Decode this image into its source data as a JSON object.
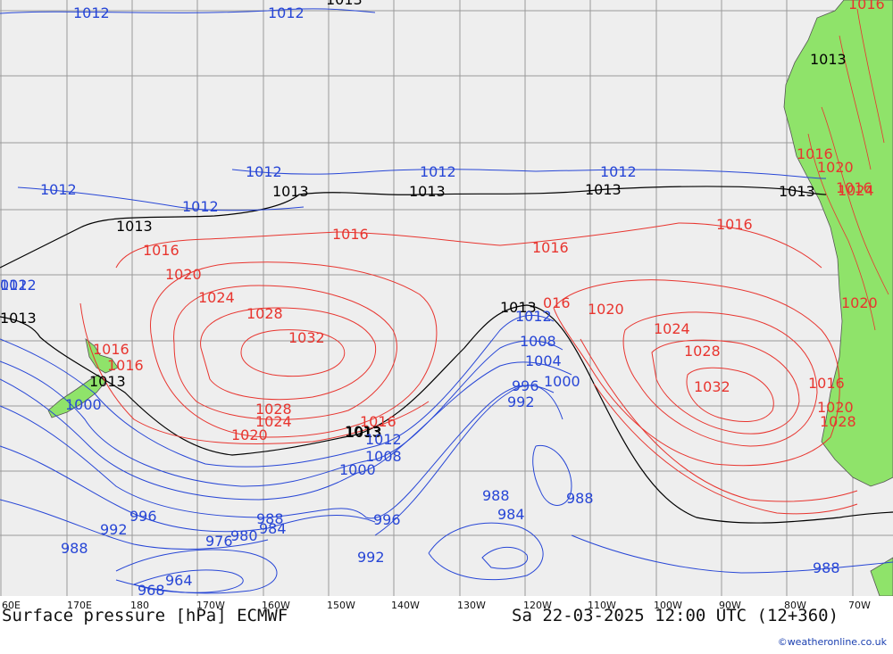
{
  "map": {
    "title": "Surface pressure [hPa] ECMWF",
    "valid_time": "Sa 22-03-2025 12:00 UTC (12+360)",
    "credit": "©weatheronline.co.uk",
    "longitude_labels": [
      "60E",
      "170E",
      "180",
      "170W",
      "160W",
      "150W",
      "140W",
      "130W",
      "120W",
      "110W",
      "100W",
      "90W",
      "80W",
      "70W"
    ],
    "colors": {
      "ocean": "#eeeeee",
      "land": "#8fe36a",
      "high": "#e8352f",
      "low": "#2746d6",
      "normal": "#000000",
      "grid": "#9a9a9a"
    },
    "isobar_labels": [
      {
        "text": "1012",
        "c": "low"
      },
      {
        "text": "1012",
        "c": "low"
      },
      {
        "text": "1013",
        "c": "normal"
      },
      {
        "text": "1016",
        "c": "high"
      },
      {
        "text": "1012",
        "c": "low"
      },
      {
        "text": "1012",
        "c": "low"
      },
      {
        "text": "1012",
        "c": "low"
      },
      {
        "text": "1013",
        "c": "normal"
      },
      {
        "text": "1012",
        "c": "low"
      },
      {
        "text": "1013",
        "c": "normal"
      },
      {
        "text": "1012",
        "c": "low"
      },
      {
        "text": "1013",
        "c": "normal"
      },
      {
        "text": "1012",
        "c": "low"
      },
      {
        "text": "1013",
        "c": "normal"
      },
      {
        "text": "1013",
        "c": "normal"
      },
      {
        "text": "1016",
        "c": "high"
      },
      {
        "text": "1016",
        "c": "high"
      },
      {
        "text": "1016",
        "c": "high"
      },
      {
        "text": "1016",
        "c": "high"
      },
      {
        "text": "1020",
        "c": "high"
      },
      {
        "text": "1024",
        "c": "high"
      },
      {
        "text": "1028",
        "c": "high"
      },
      {
        "text": "1032",
        "c": "high"
      },
      {
        "text": "1013",
        "c": "normal"
      },
      {
        "text": "016",
        "c": "high"
      },
      {
        "text": "1012",
        "c": "low"
      },
      {
        "text": "1020",
        "c": "high"
      },
      {
        "text": "1008",
        "c": "low"
      },
      {
        "text": "1024",
        "c": "high"
      },
      {
        "text": "1004",
        "c": "low"
      },
      {
        "text": "1028",
        "c": "high"
      },
      {
        "text": "1000",
        "c": "low"
      },
      {
        "text": "996",
        "c": "low"
      },
      {
        "text": "1032",
        "c": "high"
      },
      {
        "text": "992",
        "c": "low"
      },
      {
        "text": "1013",
        "c": "normal"
      },
      {
        "text": "1016",
        "c": "high"
      },
      {
        "text": "1016",
        "c": "high"
      },
      {
        "text": "1013",
        "c": "normal"
      },
      {
        "text": "1000",
        "c": "low"
      },
      {
        "text": "1028",
        "c": "high"
      },
      {
        "text": "1024",
        "c": "high"
      },
      {
        "text": "1020",
        "c": "high"
      },
      {
        "text": "1013",
        "c": "normal"
      },
      {
        "text": "1016",
        "c": "high"
      },
      {
        "text": "1012",
        "c": "low"
      },
      {
        "text": "1008",
        "c": "low"
      },
      {
        "text": "1000",
        "c": "low"
      },
      {
        "text": "988",
        "c": "low"
      },
      {
        "text": "988",
        "c": "low"
      },
      {
        "text": "984",
        "c": "low"
      },
      {
        "text": "996",
        "c": "low"
      },
      {
        "text": "992",
        "c": "low"
      },
      {
        "text": "988",
        "c": "low"
      },
      {
        "text": "988",
        "c": "low"
      },
      {
        "text": "984",
        "c": "low"
      },
      {
        "text": "996",
        "c": "low"
      },
      {
        "text": "976",
        "c": "low"
      },
      {
        "text": "980",
        "c": "low"
      },
      {
        "text": "992",
        "c": "low"
      },
      {
        "text": "964",
        "c": "low"
      },
      {
        "text": "968",
        "c": "low"
      },
      {
        "text": "988",
        "c": "low"
      },
      {
        "text": "1016",
        "c": "high"
      },
      {
        "text": "1020",
        "c": "high"
      },
      {
        "text": "1024",
        "c": "high"
      },
      {
        "text": "1020",
        "c": "high"
      },
      {
        "text": "1016",
        "c": "high"
      },
      {
        "text": "1020",
        "c": "high"
      },
      {
        "text": "1028",
        "c": "high"
      },
      {
        "text": "1013",
        "c": "normal"
      },
      {
        "text": "1016",
        "c": "high"
      },
      {
        "text": "012",
        "c": "low"
      },
      {
        "text": "1013",
        "c": "normal"
      }
    ]
  }
}
